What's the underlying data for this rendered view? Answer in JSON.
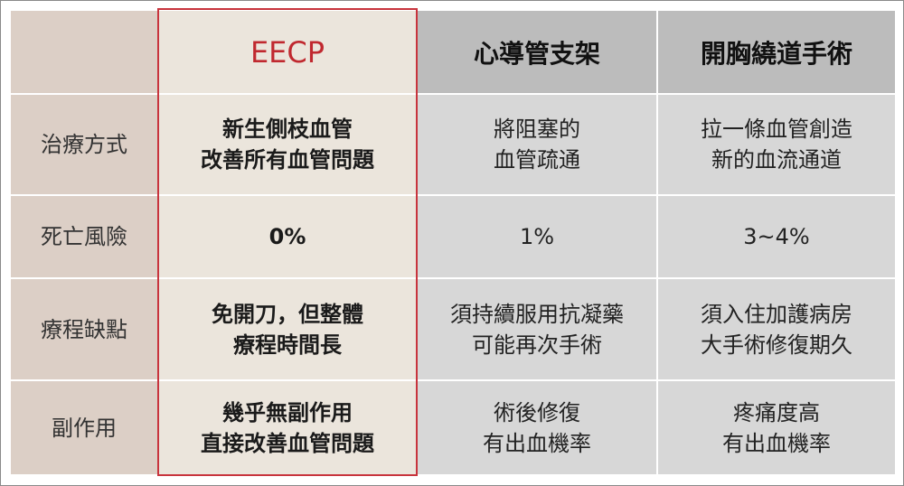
{
  "headers": [
    "",
    "EECP",
    "心導管支架",
    "開胸繞道手術"
  ],
  "accent_color": "#c0282f",
  "rows": [
    {
      "label": "治療方式",
      "cells": [
        [
          "新生側枝血管",
          "改善所有血管問題"
        ],
        [
          "將阻塞的",
          "血管疏通"
        ],
        [
          "拉一條血管創造",
          "新的血流通道"
        ]
      ]
    },
    {
      "label": "死亡風險",
      "cells": [
        [
          "0%"
        ],
        [
          "1%"
        ],
        [
          "3~4%"
        ]
      ]
    },
    {
      "label": "療程缺點",
      "cells": [
        [
          "免開刀，但整體",
          "療程時間長"
        ],
        [
          "須持續服用抗凝藥",
          "可能再次手術"
        ],
        [
          "須入住加護病房",
          "大手術修復期久"
        ]
      ]
    },
    {
      "label": "副作用",
      "cells": [
        [
          "幾乎無副作用",
          "直接改善血管問題"
        ],
        [
          "術後修復",
          "有出血機率"
        ],
        [
          "疼痛度高",
          "有出血機率"
        ]
      ]
    }
  ]
}
